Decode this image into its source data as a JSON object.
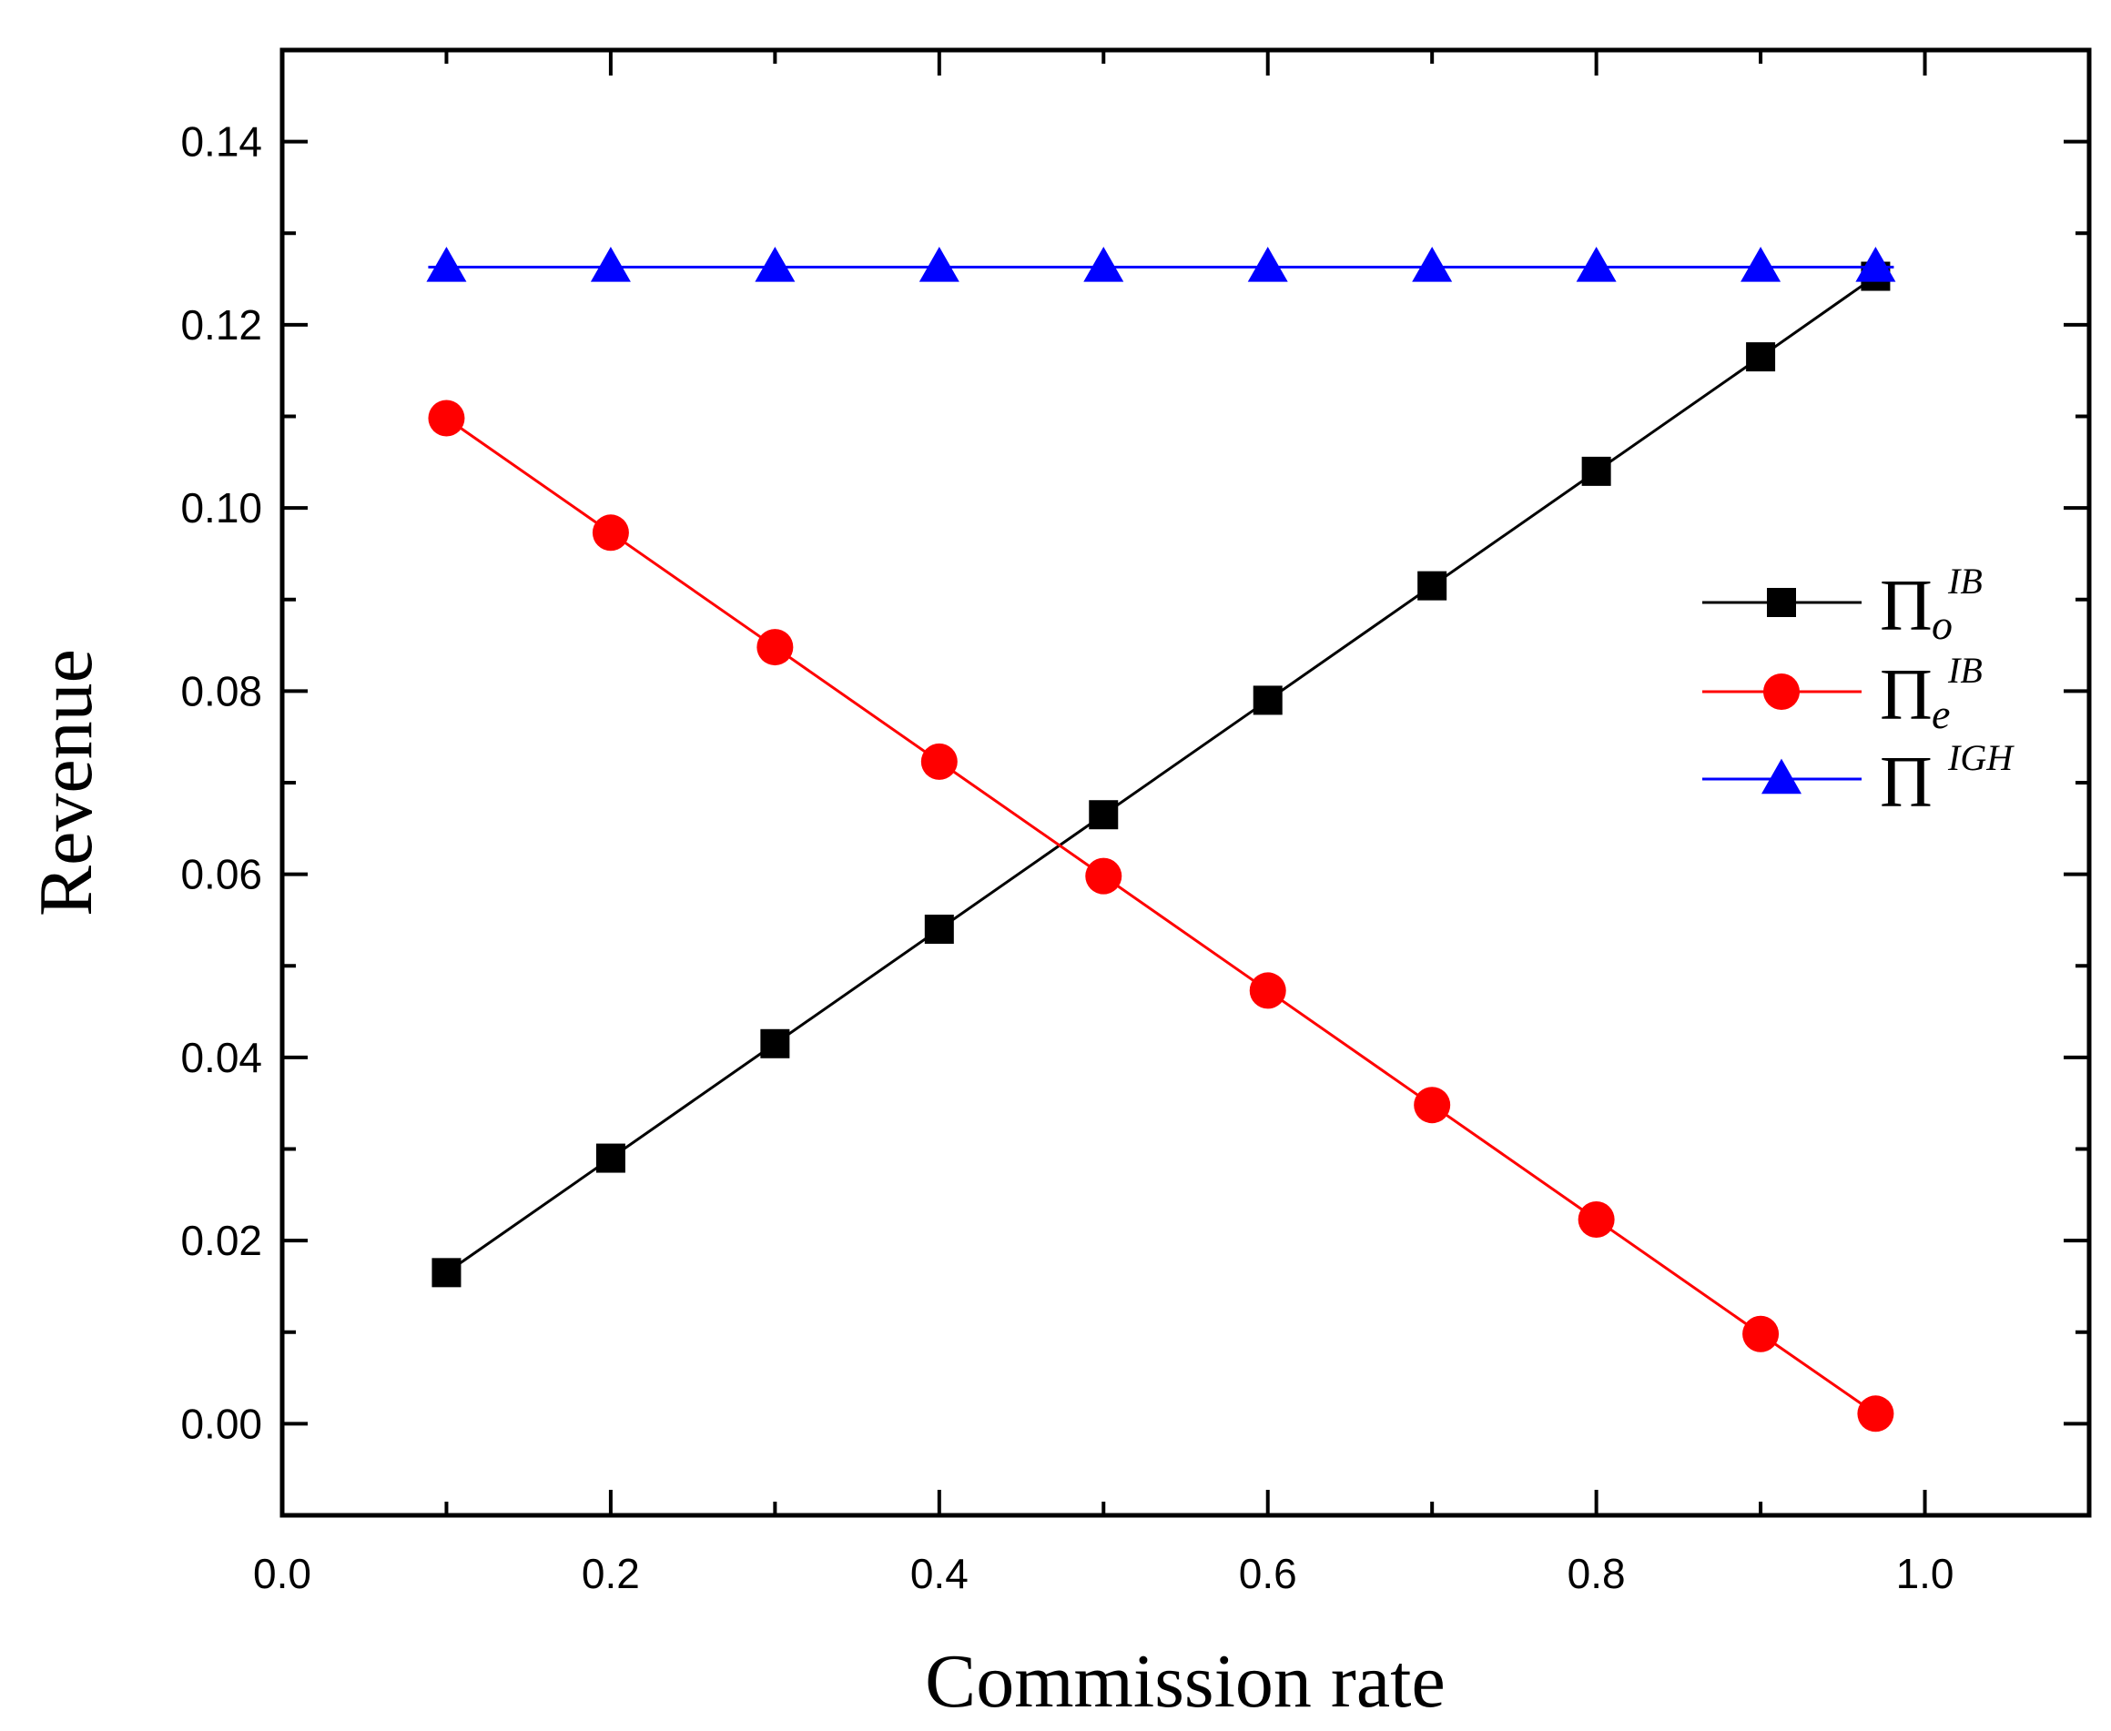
{
  "chart_data": {
    "type": "line",
    "title": "",
    "xlabel": "Commission rate",
    "ylabel": "Revenue",
    "xlim": [
      0.0,
      1.1
    ],
    "ylim": [
      -0.01,
      0.15
    ],
    "x_ticks": [
      0.0,
      0.2,
      0.4,
      0.6,
      0.8,
      1.0
    ],
    "x_tick_labels": [
      "0.0",
      "0.2",
      "0.4",
      "0.6",
      "0.8",
      "1.0"
    ],
    "y_ticks": [
      0.0,
      0.02,
      0.04,
      0.06,
      0.08,
      0.1,
      0.12,
      0.14
    ],
    "y_tick_labels": [
      "0.00",
      "0.02",
      "0.04",
      "0.06",
      "0.08",
      "0.10",
      "0.12",
      "0.14"
    ],
    "grid": false,
    "legend_position": "right",
    "x": [
      0.1,
      0.2,
      0.3,
      0.4,
      0.5,
      0.6,
      0.7,
      0.8,
      0.9,
      0.97
    ],
    "series": [
      {
        "name": "Π_o^IB",
        "symbol": "Π",
        "subscript": "o",
        "superscript": "IB",
        "color": "#000000",
        "marker": "square",
        "values": [
          0.0165,
          0.029,
          0.0415,
          0.054,
          0.0665,
          0.079,
          0.0915,
          0.104,
          0.1165,
          0.1253
        ]
      },
      {
        "name": "Π_e^IB",
        "symbol": "Π",
        "subscript": "e",
        "superscript": "IB",
        "color": "#ff0000",
        "marker": "circle",
        "values": [
          0.1098,
          0.0973,
          0.0848,
          0.0723,
          0.0598,
          0.0473,
          0.0348,
          0.0223,
          0.0098,
          0.0011
        ]
      },
      {
        "name": "Π^IGH",
        "symbol": "Π",
        "subscript": "",
        "superscript": "IGH",
        "color": "#0000ff",
        "marker": "triangle",
        "values": [
          0.1263,
          0.1263,
          0.1263,
          0.1263,
          0.1263,
          0.1263,
          0.1263,
          0.1263,
          0.1263,
          0.1263
        ]
      }
    ]
  }
}
